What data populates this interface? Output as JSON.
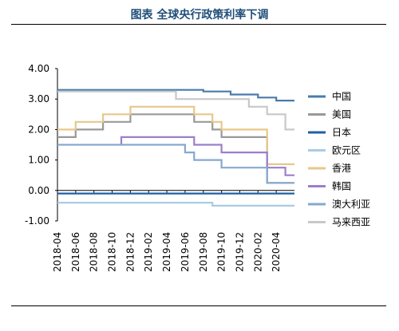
{
  "chart_data": {
    "type": "line",
    "title": "图表 全球央行政策利率下调",
    "xlabel": "",
    "ylabel": "",
    "ylim": [
      -1.0,
      4.0
    ],
    "yticks": [
      "4.00",
      "3.00",
      "2.00",
      "1.00",
      "0.00",
      "-1.00"
    ],
    "x_ticks": [
      "2018-04",
      "2018-06",
      "2018-08",
      "2018-10",
      "2018-12",
      "2019-02",
      "2019-04",
      "2019-06",
      "2019-08",
      "2019-10",
      "2019-12",
      "2020-02",
      "2020-04"
    ],
    "x_range": [
      "2018-04",
      "2020-06"
    ],
    "legend_position": "right",
    "series": [
      {
        "name": "中国",
        "color": "#4a7bab",
        "points": [
          [
            "2018-04",
            3.3
          ],
          [
            "2019-08",
            3.3
          ],
          [
            "2019-08",
            3.25
          ],
          [
            "2019-11",
            3.25
          ],
          [
            "2019-11",
            3.15
          ],
          [
            "2020-02",
            3.15
          ],
          [
            "2020-02",
            3.05
          ],
          [
            "2020-04",
            3.05
          ],
          [
            "2020-04",
            2.95
          ],
          [
            "2020-06",
            2.95
          ]
        ]
      },
      {
        "name": "美国",
        "color": "#999999",
        "points": [
          [
            "2018-04",
            1.75
          ],
          [
            "2018-06",
            1.75
          ],
          [
            "2018-06",
            2.0
          ],
          [
            "2018-09",
            2.0
          ],
          [
            "2018-09",
            2.25
          ],
          [
            "2018-12",
            2.25
          ],
          [
            "2018-12",
            2.5
          ],
          [
            "2019-07",
            2.5
          ],
          [
            "2019-07",
            2.25
          ],
          [
            "2019-09",
            2.25
          ],
          [
            "2019-09",
            2.0
          ],
          [
            "2019-10",
            2.0
          ],
          [
            "2019-10",
            1.75
          ],
          [
            "2020-03",
            1.75
          ],
          [
            "2020-03",
            1.25
          ],
          [
            "2020-03",
            0.25
          ],
          [
            "2020-06",
            0.25
          ]
        ]
      },
      {
        "name": "日本",
        "color": "#1f5fa6",
        "points": [
          [
            "2018-04",
            -0.1
          ],
          [
            "2020-06",
            -0.1
          ]
        ]
      },
      {
        "name": "欧元区",
        "color": "#a9cbe6",
        "points": [
          [
            "2018-04",
            -0.4
          ],
          [
            "2019-09",
            -0.4
          ],
          [
            "2019-09",
            -0.5
          ],
          [
            "2020-06",
            -0.5
          ]
        ]
      },
      {
        "name": "香港",
        "color": "#e6c88a",
        "points": [
          [
            "2018-04",
            2.0
          ],
          [
            "2018-06",
            2.0
          ],
          [
            "2018-06",
            2.25
          ],
          [
            "2018-09",
            2.25
          ],
          [
            "2018-09",
            2.5
          ],
          [
            "2018-12",
            2.5
          ],
          [
            "2018-12",
            2.75
          ],
          [
            "2019-07",
            2.75
          ],
          [
            "2019-07",
            2.5
          ],
          [
            "2019-09",
            2.5
          ],
          [
            "2019-09",
            2.25
          ],
          [
            "2019-10",
            2.25
          ],
          [
            "2019-10",
            2.0
          ],
          [
            "2020-03",
            2.0
          ],
          [
            "2020-03",
            1.5
          ],
          [
            "2020-03",
            0.86
          ],
          [
            "2020-06",
            0.86
          ]
        ]
      },
      {
        "name": "韩国",
        "color": "#9b7fcb",
        "points": [
          [
            "2018-11",
            1.5
          ],
          [
            "2018-11",
            1.75
          ],
          [
            "2019-07",
            1.75
          ],
          [
            "2019-07",
            1.5
          ],
          [
            "2019-10",
            1.5
          ],
          [
            "2019-10",
            1.25
          ],
          [
            "2020-03",
            1.25
          ],
          [
            "2020-03",
            0.75
          ],
          [
            "2020-05",
            0.75
          ],
          [
            "2020-05",
            0.5
          ],
          [
            "2020-06",
            0.5
          ]
        ]
      },
      {
        "name": "澳大利亚",
        "color": "#86a9cf",
        "points": [
          [
            "2018-04",
            1.5
          ],
          [
            "2019-06",
            1.5
          ],
          [
            "2019-06",
            1.25
          ],
          [
            "2019-07",
            1.25
          ],
          [
            "2019-07",
            1.0
          ],
          [
            "2019-10",
            1.0
          ],
          [
            "2019-10",
            0.75
          ],
          [
            "2020-03",
            0.75
          ],
          [
            "2020-03",
            0.5
          ],
          [
            "2020-03",
            0.25
          ],
          [
            "2020-06",
            0.25
          ]
        ]
      },
      {
        "name": "马来西亚",
        "color": "#c8c8c8",
        "points": [
          [
            "2018-04",
            3.25
          ],
          [
            "2019-05",
            3.25
          ],
          [
            "2019-05",
            3.0
          ],
          [
            "2020-01",
            3.0
          ],
          [
            "2020-01",
            2.75
          ],
          [
            "2020-03",
            2.75
          ],
          [
            "2020-03",
            2.5
          ],
          [
            "2020-05",
            2.5
          ],
          [
            "2020-05",
            2.0
          ],
          [
            "2020-06",
            2.0
          ]
        ]
      }
    ]
  }
}
